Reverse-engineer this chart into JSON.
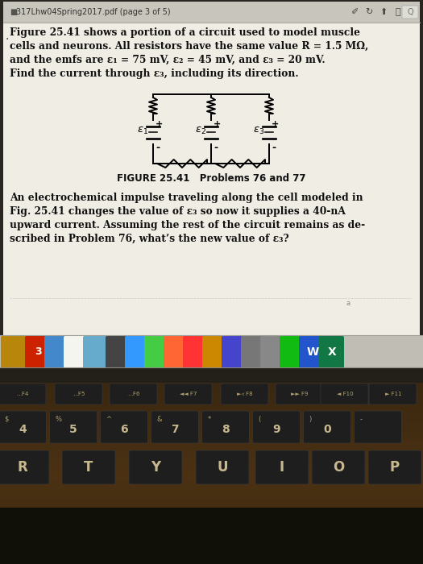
{
  "title_bar_text": "317Lhw04Spring2017.pdf (page 3 of 5)",
  "p1_lines": [
    "Figure 25.41 shows a portion of a circuit used to model muscle",
    "cells and neurons. All resistors have the same value R = 1.5 MΩ,",
    "and the emfs are ε₁ = 75 mV, ε₂ = 45 mV, and ε₃ = 20 mV.",
    "Find the current through ε₃, including its direction."
  ],
  "figure_caption": "FIGURE 25.41   Problems 76 and 77",
  "p2_lines": [
    "An electrochemical impulse traveling along the cell modeled in",
    "Fig. 25.41 changes the value of ε₃ so now it supplies a 40-nA",
    "upward current. Assuming the rest of the circuit remains as de-",
    "scribed in Problem 76, what’s the new value of ε₃?"
  ],
  "screen_bg": "#f0ede4",
  "title_bar_bg": "#c8c5bc",
  "doc_text_color": "#111111",
  "caption_color": "#111111",
  "keyboard_bg": "#1a1a1a",
  "key_color": "#2c2c2c",
  "key_text": "#cccccc",
  "laptop_bezel_color": "#2a2520",
  "dock_bg": "#c0bdb5",
  "keyboard_glow": "#b87030"
}
